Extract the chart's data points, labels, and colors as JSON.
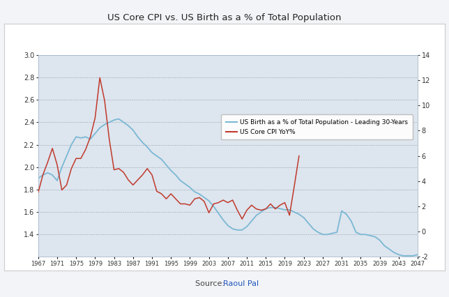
{
  "title": "US Core CPI vs. US Birth as a % of Total Population",
  "source_label": "Source: ",
  "source_link": "Raoul Pal",
  "fig_bg": "#f2f4f7",
  "chart_border_bg": "#ffffff",
  "plot_bg": "#dde5ee",
  "birth_color": "#7ab8d4",
  "cpi_color": "#c0392b",
  "birth_label": "US Birth as a % of Total Population - Leading 30-Years",
  "cpi_label": "US Core CPI YoY%",
  "left_ylim": [
    1.2,
    3.0
  ],
  "right_ylim": [
    -2,
    14
  ],
  "left_yticks": [
    1.4,
    1.6,
    1.8,
    2.0,
    2.2,
    2.4,
    2.6,
    2.8,
    3.0
  ],
  "right_yticks": [
    -2,
    0,
    2,
    4,
    6,
    8,
    10,
    12,
    14
  ],
  "xticks": [
    1967,
    1971,
    1975,
    1979,
    1983,
    1987,
    1991,
    1995,
    1999,
    2003,
    2007,
    2011,
    2015,
    2019,
    2023,
    2027,
    2031,
    2035,
    2039,
    2043,
    2047
  ],
  "xlim": [
    1967,
    2047
  ],
  "birth_years": [
    1967,
    1968,
    1969,
    1970,
    1971,
    1972,
    1973,
    1974,
    1975,
    1976,
    1977,
    1978,
    1979,
    1980,
    1981,
    1982,
    1983,
    1984,
    1985,
    1986,
    1987,
    1988,
    1989,
    1990,
    1991,
    1992,
    1993,
    1994,
    1995,
    1996,
    1997,
    1998,
    1999,
    2000,
    2001,
    2002,
    2003,
    2004,
    2005,
    2006,
    2007,
    2008,
    2009,
    2010,
    2011,
    2012,
    2013,
    2014,
    2015,
    2016,
    2017,
    2018,
    2019,
    2020,
    2021,
    2022,
    2023,
    2024,
    2025,
    2026,
    2027,
    2028,
    2029,
    2030,
    2031,
    2032,
    2033,
    2034,
    2035,
    2036,
    2037,
    2038,
    2039,
    2040,
    2041,
    2042,
    2043,
    2044,
    2045,
    2046,
    2047
  ],
  "birth_values": [
    1.9,
    1.93,
    1.95,
    1.93,
    1.88,
    2.0,
    2.1,
    2.2,
    2.27,
    2.26,
    2.27,
    2.25,
    2.3,
    2.35,
    2.38,
    2.4,
    2.42,
    2.43,
    2.4,
    2.37,
    2.33,
    2.27,
    2.22,
    2.18,
    2.13,
    2.1,
    2.07,
    2.02,
    1.97,
    1.93,
    1.88,
    1.85,
    1.82,
    1.78,
    1.76,
    1.73,
    1.7,
    1.65,
    1.59,
    1.53,
    1.48,
    1.45,
    1.44,
    1.44,
    1.47,
    1.52,
    1.57,
    1.6,
    1.63,
    1.64,
    1.64,
    1.63,
    1.62,
    1.62,
    1.6,
    1.58,
    1.55,
    1.5,
    1.45,
    1.42,
    1.4,
    1.4,
    1.41,
    1.42,
    1.61,
    1.58,
    1.52,
    1.42,
    1.4,
    1.4,
    1.39,
    1.38,
    1.35,
    1.3,
    1.27,
    1.24,
    1.22,
    1.21,
    1.21,
    1.21,
    1.22
  ],
  "cpi_years": [
    1967,
    1968,
    1969,
    1970,
    1971,
    1972,
    1973,
    1974,
    1975,
    1976,
    1977,
    1978,
    1979,
    1980,
    1981,
    1982,
    1983,
    1984,
    1985,
    1986,
    1987,
    1988,
    1989,
    1990,
    1991,
    1992,
    1993,
    1994,
    1995,
    1996,
    1997,
    1998,
    1999,
    2000,
    2001,
    2002,
    2003,
    2004,
    2005,
    2006,
    2007,
    2008,
    2009,
    2010,
    2011,
    2012,
    2013,
    2014,
    2015,
    2016,
    2017,
    2018,
    2019,
    2020,
    2021,
    2022
  ],
  "cpi_values": [
    3.1,
    4.5,
    5.5,
    6.6,
    5.3,
    3.3,
    3.7,
    5.0,
    5.8,
    5.8,
    6.5,
    7.5,
    9.0,
    12.2,
    10.4,
    7.3,
    4.9,
    5.0,
    4.7,
    4.1,
    3.7,
    4.1,
    4.5,
    5.0,
    4.5,
    3.2,
    3.0,
    2.6,
    3.0,
    2.6,
    2.2,
    2.2,
    2.1,
    2.6,
    2.7,
    2.4,
    1.5,
    2.2,
    2.3,
    2.5,
    2.3,
    2.5,
    1.7,
    1.0,
    1.7,
    2.1,
    1.8,
    1.7,
    1.8,
    2.2,
    1.8,
    2.1,
    2.3,
    1.3,
    3.6,
    6.0
  ]
}
